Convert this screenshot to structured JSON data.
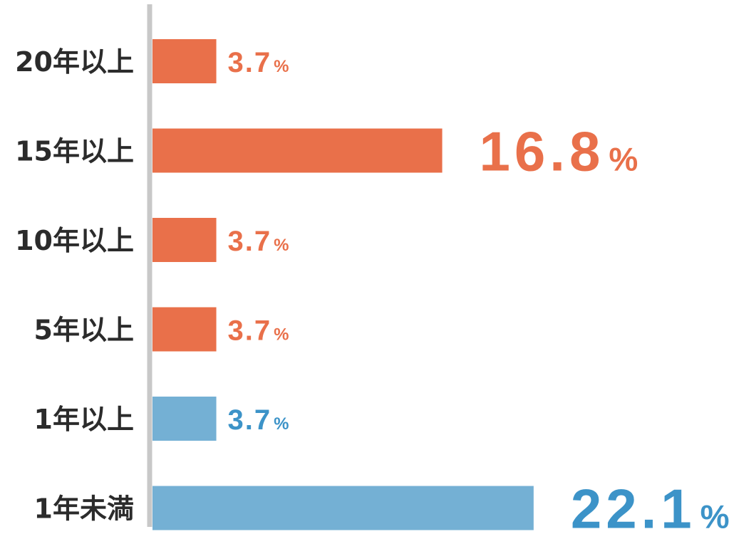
{
  "chart_data": {
    "type": "bar",
    "orientation": "horizontal",
    "categories": [
      "20年以上",
      "15年以上",
      "10年以上",
      "5年以上",
      "1年以上",
      "1年未満"
    ],
    "values": [
      3.7,
      16.8,
      3.7,
      3.7,
      3.7,
      22.1
    ],
    "value_labels": [
      "3.7",
      "16.8",
      "3.7",
      "3.7",
      "3.7",
      "22.1"
    ],
    "unit": "%",
    "highlighted": [
      false,
      true,
      false,
      false,
      false,
      true
    ],
    "bar_colors": [
      "#E9704A",
      "#E9704A",
      "#E9704A",
      "#E9704A",
      "#74B0D4",
      "#74B0D4"
    ],
    "label_colors": [
      "#E9704A",
      "#E9704A",
      "#E9704A",
      "#E9704A",
      "#3C93C8",
      "#3C93C8"
    ],
    "axis_color": "#C8C8C8",
    "title": "",
    "xlabel": "",
    "ylabel": "",
    "grid": false,
    "legend": "none"
  }
}
